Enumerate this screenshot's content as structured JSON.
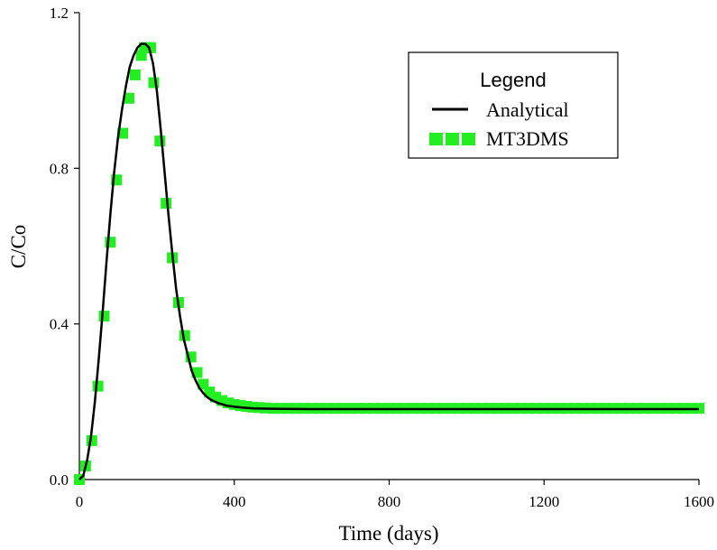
{
  "chart_data": {
    "type": "line",
    "title": "",
    "xlabel": "Time (days)",
    "ylabel": "C/Co",
    "xlim": [
      0,
      1600
    ],
    "ylim": [
      0,
      1.2
    ],
    "xticks": [
      0,
      400,
      800,
      1200,
      1600
    ],
    "yticks": [
      0,
      0.4,
      0.8,
      1.2
    ],
    "xtick_labels": [
      "0",
      "400",
      "800",
      "1200",
      "1600"
    ],
    "ytick_labels": [
      "0.0",
      "0.4",
      "0.8",
      "1.2"
    ],
    "grid": false,
    "legend": {
      "title": "Legend",
      "position": "top-right",
      "entries": [
        "Analytical",
        "MT3DMS"
      ]
    },
    "series": [
      {
        "name": "Analytical",
        "style": "line",
        "color": "#000000",
        "x": [
          0,
          10,
          20,
          30,
          40,
          50,
          60,
          70,
          80,
          90,
          100,
          110,
          120,
          130,
          140,
          150,
          160,
          170,
          180,
          190,
          200,
          210,
          220,
          230,
          240,
          250,
          260,
          270,
          280,
          290,
          300,
          310,
          320,
          330,
          340,
          350,
          360,
          380,
          400,
          420,
          450,
          500,
          600,
          800,
          1000,
          1200,
          1400,
          1600
        ],
        "y": [
          0.0,
          0.01,
          0.05,
          0.11,
          0.2,
          0.31,
          0.43,
          0.56,
          0.68,
          0.79,
          0.88,
          0.95,
          1.01,
          1.06,
          1.09,
          1.11,
          1.12,
          1.12,
          1.11,
          1.07,
          1.0,
          0.9,
          0.79,
          0.68,
          0.58,
          0.49,
          0.42,
          0.36,
          0.32,
          0.28,
          0.255,
          0.235,
          0.222,
          0.212,
          0.205,
          0.2,
          0.196,
          0.19,
          0.187,
          0.185,
          0.183,
          0.182,
          0.181,
          0.181,
          0.181,
          0.181,
          0.181,
          0.181
        ]
      },
      {
        "name": "MT3DMS",
        "style": "square-markers",
        "color": "#22ee22",
        "x": [
          0,
          16,
          32,
          48,
          64,
          80,
          96,
          112,
          128,
          144,
          160,
          168,
          176,
          184,
          192,
          208,
          224,
          240,
          256,
          272,
          288,
          304,
          320,
          336,
          352,
          368,
          384,
          400,
          416,
          432,
          448,
          464,
          480,
          500,
          520,
          540,
          560,
          580,
          600,
          620,
          640,
          660,
          680,
          700,
          720,
          740,
          760,
          780,
          800,
          820,
          840,
          860,
          880,
          900,
          920,
          940,
          960,
          980,
          1000,
          1020,
          1040,
          1060,
          1080,
          1100,
          1120,
          1140,
          1160,
          1180,
          1200,
          1220,
          1240,
          1260,
          1280,
          1300,
          1320,
          1340,
          1360,
          1380,
          1400,
          1420,
          1440,
          1460,
          1480,
          1500,
          1520,
          1540,
          1560,
          1580,
          1600
        ],
        "y": [
          0.0,
          0.035,
          0.1,
          0.24,
          0.42,
          0.61,
          0.77,
          0.89,
          0.98,
          1.04,
          1.09,
          1.11,
          1.11,
          1.11,
          1.02,
          0.87,
          0.71,
          0.57,
          0.455,
          0.37,
          0.315,
          0.275,
          0.245,
          0.225,
          0.212,
          0.203,
          0.197,
          0.193,
          0.19,
          0.188,
          0.186,
          0.185,
          0.184,
          0.183,
          0.183,
          0.183,
          0.183,
          0.183,
          0.183,
          0.183,
          0.183,
          0.183,
          0.183,
          0.183,
          0.183,
          0.183,
          0.183,
          0.183,
          0.183,
          0.183,
          0.183,
          0.183,
          0.183,
          0.183,
          0.183,
          0.183,
          0.183,
          0.183,
          0.183,
          0.183,
          0.183,
          0.183,
          0.183,
          0.183,
          0.183,
          0.183,
          0.183,
          0.183,
          0.183,
          0.183,
          0.183,
          0.183,
          0.183,
          0.183,
          0.183,
          0.183,
          0.183,
          0.183,
          0.183,
          0.183,
          0.183,
          0.183,
          0.183,
          0.183,
          0.183,
          0.183,
          0.183,
          0.183,
          0.183
        ]
      }
    ]
  }
}
